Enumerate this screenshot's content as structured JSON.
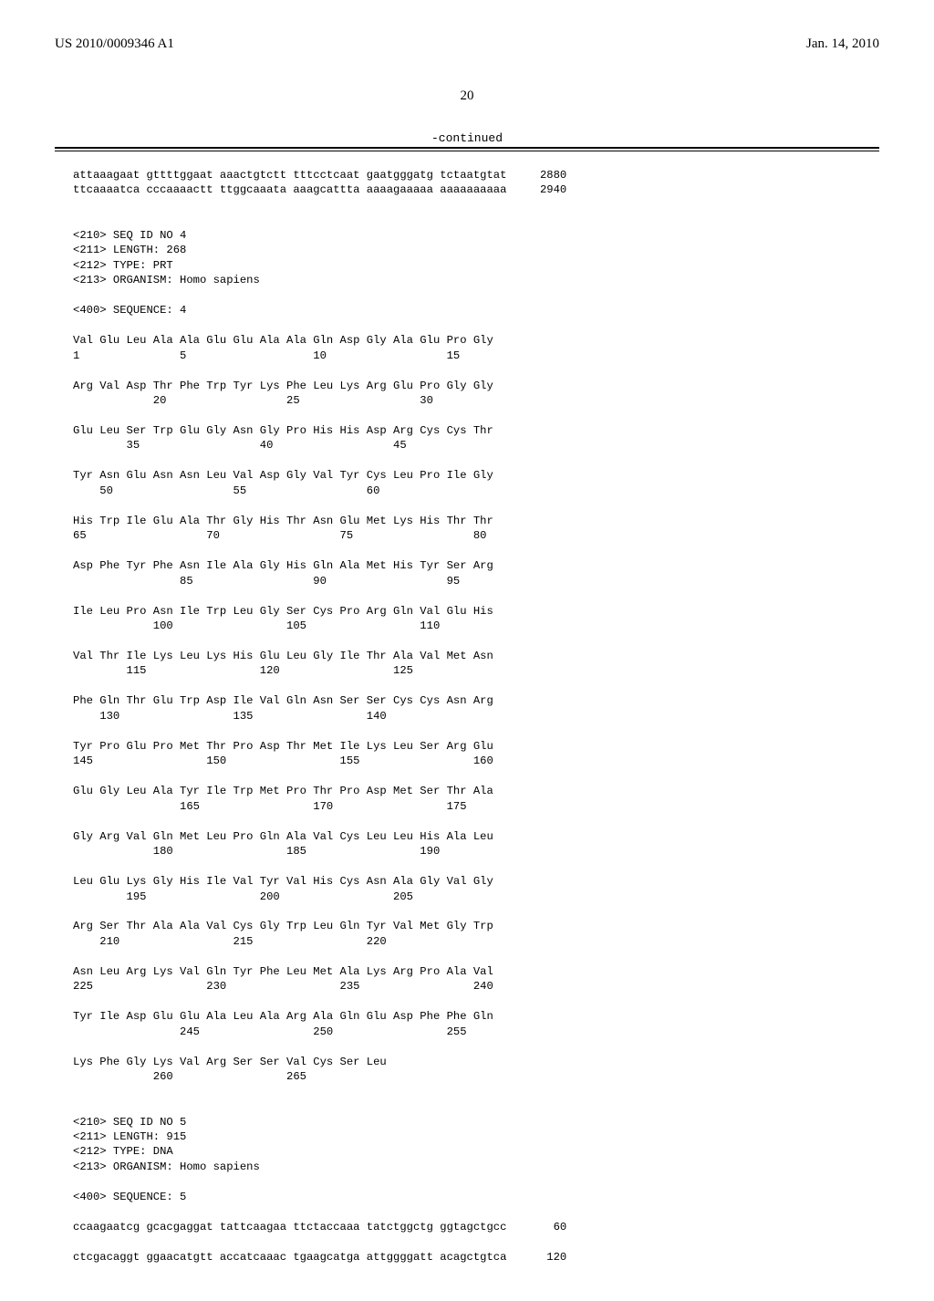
{
  "header": {
    "pub_number": "US 2010/0009346 A1",
    "pub_date": "Jan. 14, 2010"
  },
  "page_number": "20",
  "continued_label": "-continued",
  "dna_tail": {
    "lines": [
      {
        "seq": "attaaagaat gttttggaat aaactgtctt tttcctcaat gaatgggatg tctaatgtat",
        "pos": "2880"
      },
      {
        "seq": "ttcaaaatca cccaaaactt ttggcaaata aaagcattta aaaagaaaaa aaaaaaaaaa",
        "pos": "2940"
      }
    ]
  },
  "seq4_meta": {
    "l1": "<210> SEQ ID NO 4",
    "l2": "<211> LENGTH: 268",
    "l3": "<212> TYPE: PRT",
    "l4": "<213> ORGANISM: Homo sapiens",
    "l5": "<400> SEQUENCE: 4"
  },
  "protein_rows": [
    {
      "aa": "Val Glu Leu Ala Ala Glu Glu Ala Ala Gln Asp Gly Ala Glu Pro Gly",
      "nums": "1               5                   10                  15"
    },
    {
      "aa": "Arg Val Asp Thr Phe Trp Tyr Lys Phe Leu Lys Arg Glu Pro Gly Gly",
      "nums": "            20                  25                  30"
    },
    {
      "aa": "Glu Leu Ser Trp Glu Gly Asn Gly Pro His His Asp Arg Cys Cys Thr",
      "nums": "        35                  40                  45"
    },
    {
      "aa": "Tyr Asn Glu Asn Asn Leu Val Asp Gly Val Tyr Cys Leu Pro Ile Gly",
      "nums": "    50                  55                  60"
    },
    {
      "aa": "His Trp Ile Glu Ala Thr Gly His Thr Asn Glu Met Lys His Thr Thr",
      "nums": "65                  70                  75                  80"
    },
    {
      "aa": "Asp Phe Tyr Phe Asn Ile Ala Gly His Gln Ala Met His Tyr Ser Arg",
      "nums": "                85                  90                  95"
    },
    {
      "aa": "Ile Leu Pro Asn Ile Trp Leu Gly Ser Cys Pro Arg Gln Val Glu His",
      "nums": "            100                 105                 110"
    },
    {
      "aa": "Val Thr Ile Lys Leu Lys His Glu Leu Gly Ile Thr Ala Val Met Asn",
      "nums": "        115                 120                 125"
    },
    {
      "aa": "Phe Gln Thr Glu Trp Asp Ile Val Gln Asn Ser Ser Cys Cys Asn Arg",
      "nums": "    130                 135                 140"
    },
    {
      "aa": "Tyr Pro Glu Pro Met Thr Pro Asp Thr Met Ile Lys Leu Ser Arg Glu",
      "nums": "145                 150                 155                 160"
    },
    {
      "aa": "Glu Gly Leu Ala Tyr Ile Trp Met Pro Thr Pro Asp Met Ser Thr Ala",
      "nums": "                165                 170                 175"
    },
    {
      "aa": "Gly Arg Val Gln Met Leu Pro Gln Ala Val Cys Leu Leu His Ala Leu",
      "nums": "            180                 185                 190"
    },
    {
      "aa": "Leu Glu Lys Gly His Ile Val Tyr Val His Cys Asn Ala Gly Val Gly",
      "nums": "        195                 200                 205"
    },
    {
      "aa": "Arg Ser Thr Ala Ala Val Cys Gly Trp Leu Gln Tyr Val Met Gly Trp",
      "nums": "    210                 215                 220"
    },
    {
      "aa": "Asn Leu Arg Lys Val Gln Tyr Phe Leu Met Ala Lys Arg Pro Ala Val",
      "nums": "225                 230                 235                 240"
    },
    {
      "aa": "Tyr Ile Asp Glu Glu Ala Leu Ala Arg Ala Gln Glu Asp Phe Phe Gln",
      "nums": "                245                 250                 255"
    },
    {
      "aa": "Lys Phe Gly Lys Val Arg Ser Ser Val Cys Ser Leu",
      "nums": "            260                 265"
    }
  ],
  "seq5_meta": {
    "l1": "<210> SEQ ID NO 5",
    "l2": "<211> LENGTH: 915",
    "l3": "<212> TYPE: DNA",
    "l4": "<213> ORGANISM: Homo sapiens",
    "l5": "<400> SEQUENCE: 5"
  },
  "dna5": {
    "lines": [
      {
        "seq": "ccaagaatcg gcacgaggat tattcaagaa ttctaccaaa tatctggctg ggtagctgcc",
        "pos": "60"
      },
      {
        "seq": "ctcgacaggt ggaacatgtt accatcaaac tgaagcatga attggggatt acagctgtca",
        "pos": "120"
      }
    ]
  }
}
